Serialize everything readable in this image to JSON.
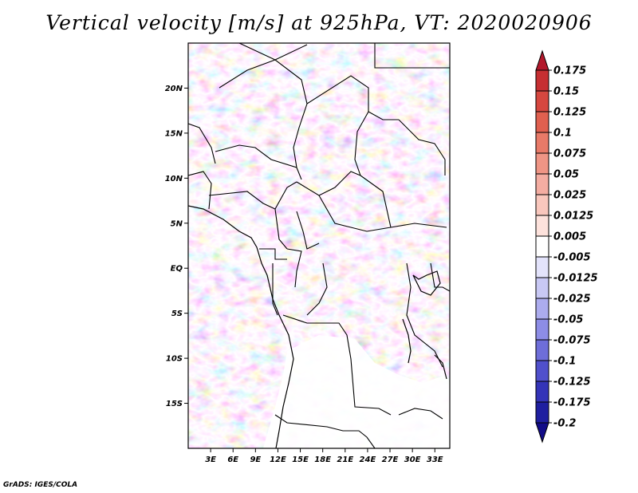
{
  "title": "Vertical velocity [m/s] at 925hPa, VT: 2020020906",
  "credit": "GrADS: IGES/COLA",
  "map": {
    "latitude_labels": [
      "20N",
      "15N",
      "10N",
      "5N",
      "EQ",
      "5S",
      "10S",
      "15S"
    ],
    "longitude_labels": [
      "3E",
      "6E",
      "9E",
      "12E",
      "15E",
      "18E",
      "21E",
      "24E",
      "27E",
      "30E",
      "33E"
    ],
    "lat_values": [
      20,
      15,
      10,
      5,
      0,
      -5,
      -10,
      -15
    ],
    "lon_values": [
      3,
      6,
      9,
      12,
      15,
      18,
      21,
      24,
      27,
      30,
      33
    ],
    "lat_range": [
      -20,
      25
    ],
    "lon_range": [
      0,
      35
    ]
  },
  "colorbar": {
    "labels": [
      "0.175",
      "0.15",
      "0.125",
      "0.1",
      "0.075",
      "0.05",
      "0.025",
      "0.0125",
      "0.005",
      "-0.005",
      "-0.0125",
      "-0.025",
      "-0.05",
      "-0.075",
      "-0.1",
      "-0.125",
      "-0.175",
      "-0.2"
    ],
    "colors": [
      "#b2182b",
      "#c62f32",
      "#d6473f",
      "#e0604f",
      "#e87a68",
      "#ef9585",
      "#f4ada2",
      "#f9c7bd",
      "#fde2dc",
      "#ffffff",
      "#e3e3fb",
      "#c8c8f4",
      "#acacee",
      "#8d8de6",
      "#6e6ed9",
      "#5050cc",
      "#3434b8",
      "#1f1fa0",
      "#120c88"
    ]
  }
}
